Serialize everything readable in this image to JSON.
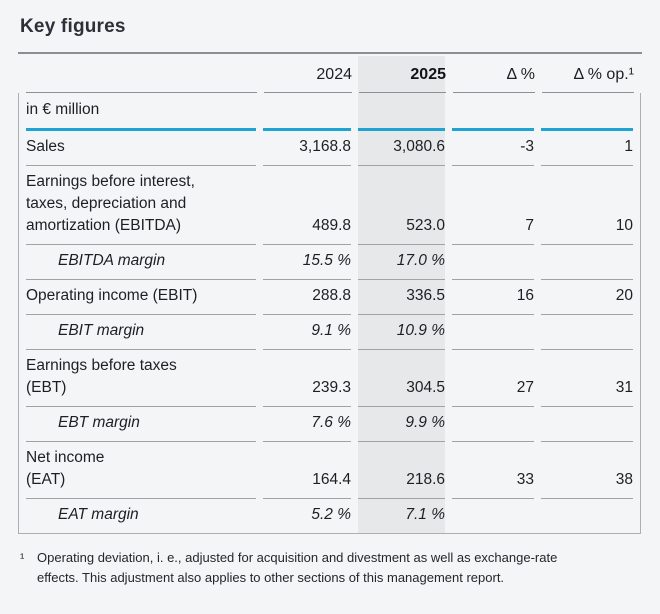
{
  "title": "Key figures",
  "table": {
    "unit_label": "in € million",
    "columns": [
      "2024",
      "2025",
      "Δ %",
      "Δ % op.¹"
    ],
    "rows": [
      {
        "type": "normal",
        "label": "Sales",
        "y2024": "3,168.8",
        "y2025": "3,080.6",
        "delta": "-3",
        "delta_op": "1"
      },
      {
        "type": "normal",
        "label": "Earnings before interest,\ntaxes, depreciation and\namortization (EBITDA)",
        "y2024": "489.8",
        "y2025": "523.0",
        "delta": "7",
        "delta_op": "10"
      },
      {
        "type": "margin",
        "label": "EBITDA margin",
        "y2024": "15.5 %",
        "y2025": "17.0 %",
        "delta": "",
        "delta_op": ""
      },
      {
        "type": "normal",
        "label": "Operating income (EBIT)",
        "y2024": "288.8",
        "y2025": "336.5",
        "delta": "16",
        "delta_op": "20"
      },
      {
        "type": "margin",
        "label": "EBIT margin",
        "y2024": "9.1 %",
        "y2025": "10.9 %",
        "delta": "",
        "delta_op": ""
      },
      {
        "type": "normal",
        "label": "Earnings before taxes\n(EBT)",
        "y2024": "239.3",
        "y2025": "304.5",
        "delta": "27",
        "delta_op": "31"
      },
      {
        "type": "margin",
        "label": "EBT margin",
        "y2024": "7.6 %",
        "y2025": "9.9 %",
        "delta": "",
        "delta_op": ""
      },
      {
        "type": "normal",
        "label": "Net income\n(EAT)",
        "y2024": "164.4",
        "y2025": "218.6",
        "delta": "33",
        "delta_op": "38"
      },
      {
        "type": "margin",
        "label": "EAT margin",
        "y2024": "5.2 %",
        "y2025": "7.1 %",
        "delta": "",
        "delta_op": ""
      }
    ]
  },
  "footnote": {
    "mark": "¹",
    "text": "Operating deviation, i. e., adjusted for acquisition and divestment as well as exchange-rate\neffects. This adjustment also applies to other sections of this management report."
  },
  "colors": {
    "accent_cyan": "#1ea4d2",
    "highlight_column_bg": "#e7e8ea",
    "page_bg": "#f4f5f7",
    "separator_gray": "#a2a2a6"
  }
}
